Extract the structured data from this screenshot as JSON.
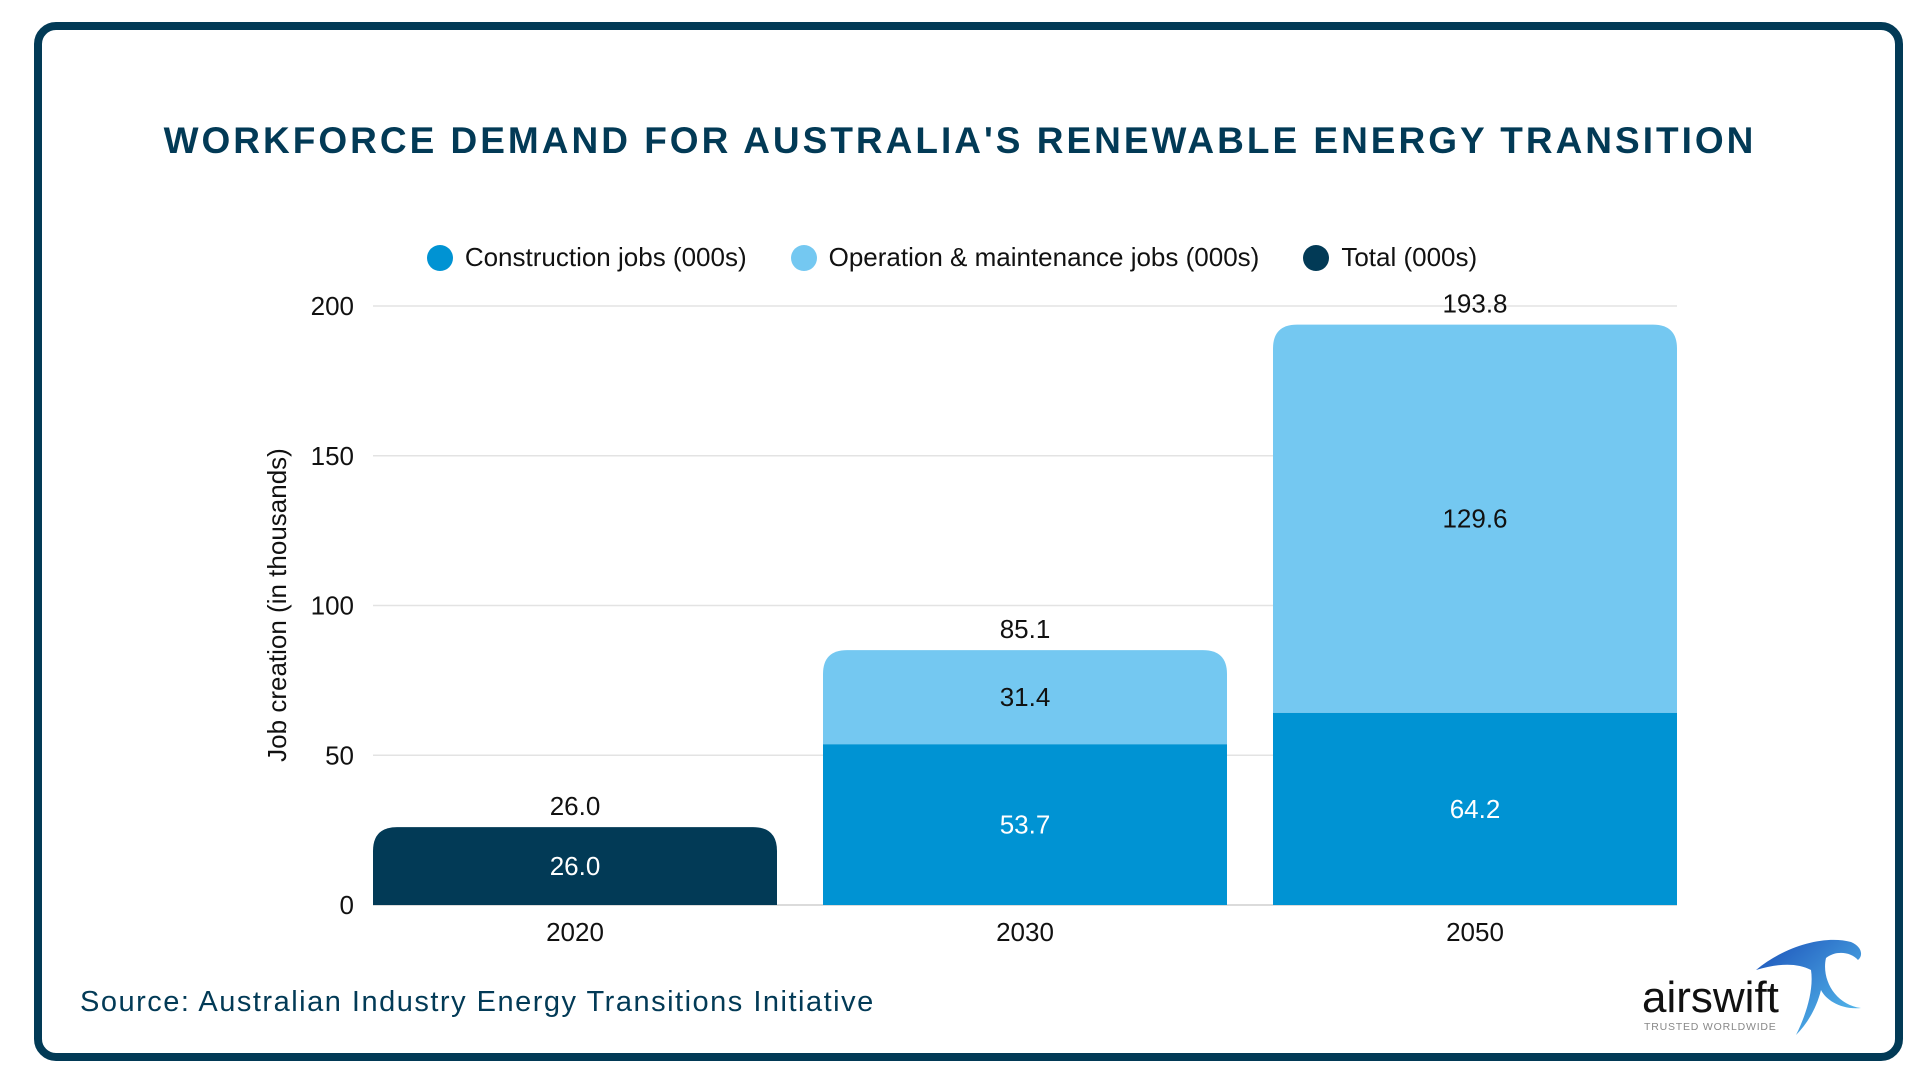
{
  "chart_data": {
    "type": "bar",
    "stacked": true,
    "title": "WORKFORCE DEMAND FOR AUSTRALIA'S RENEWABLE ENERGY TRANSITION",
    "xlabel": "",
    "ylabel": "Job creation (in thousands)",
    "ylim": [
      0,
      200
    ],
    "yticks": [
      0,
      50,
      100,
      150,
      200
    ],
    "grid": true,
    "legend_position": "top",
    "categories": [
      "2020",
      "2030",
      "2050"
    ],
    "series": [
      {
        "name": "Construction jobs (000s)",
        "color": "#0093d3",
        "values": [
          null,
          53.7,
          64.2
        ]
      },
      {
        "name": "Operation & maintenance jobs (000s)",
        "color": "#74c8f1",
        "values": [
          null,
          31.4,
          129.6
        ]
      },
      {
        "name": "Total (000s)",
        "color": "#023a56",
        "values": [
          26.0,
          null,
          null
        ]
      }
    ],
    "totals": [
      26.0,
      85.1,
      193.8
    ]
  },
  "source": "Source: Australian Industry Energy Transitions Initiative",
  "logo": {
    "name": "airswift",
    "tagline": "TRUSTED WORLDWIDE"
  }
}
